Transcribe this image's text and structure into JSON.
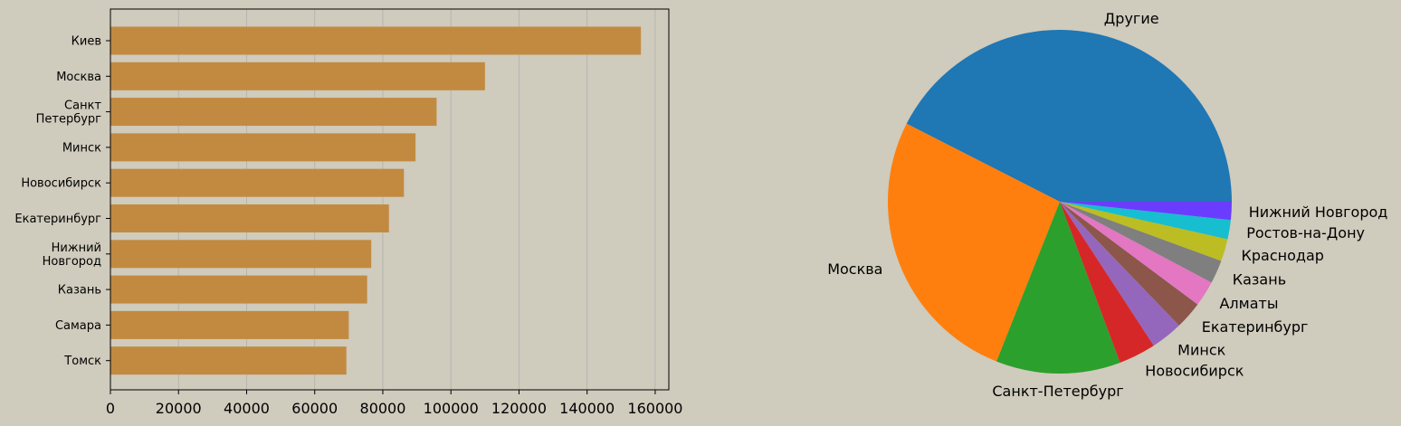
{
  "chart_data": [
    {
      "type": "bar",
      "orientation": "horizontal",
      "title": "",
      "xlabel": "",
      "ylabel": "",
      "categories": [
        "Киев",
        "Москва",
        "Санкт\nПетербург",
        "Минск",
        "Новосибирск",
        "Екатеринбург",
        "Нижний\nНовгород",
        "Казань",
        "Самара",
        "Томск"
      ],
      "values": [
        155800,
        110000,
        95800,
        89600,
        86200,
        81800,
        76600,
        75400,
        70000,
        69300
      ],
      "xlim": [
        0,
        164000
      ],
      "xticks": [
        0,
        20000,
        40000,
        60000,
        80000,
        100000,
        120000,
        140000,
        160000
      ],
      "grid": "x",
      "bar_color": "#c28a40"
    },
    {
      "type": "pie",
      "title": "",
      "labels": [
        "Другие",
        "Москва",
        "Санкт-Петербург",
        "Новосибирск",
        "Минск",
        "Екатеринбург",
        "Алматы",
        "Казань",
        "Краснодар",
        "Ростов-на-Дону",
        "Нижний Новгород"
      ],
      "values": [
        42.5,
        26.5,
        11.7,
        3.5,
        3.0,
        2.6,
        2.4,
        2.2,
        2.1,
        1.8,
        1.7
      ],
      "colors": [
        "#1f77b4",
        "#ff7f0e",
        "#2ca02c",
        "#d62728",
        "#9467bd",
        "#8c564b",
        "#e377c2",
        "#7f7f7f",
        "#bcbd22",
        "#17becf",
        "#6a3cff"
      ],
      "start_angle_deg": 0,
      "direction": "counterclockwise"
    }
  ],
  "colors": {
    "background": "#cfcbbd",
    "grid": "#b0b0b0",
    "axis": "#000000"
  }
}
